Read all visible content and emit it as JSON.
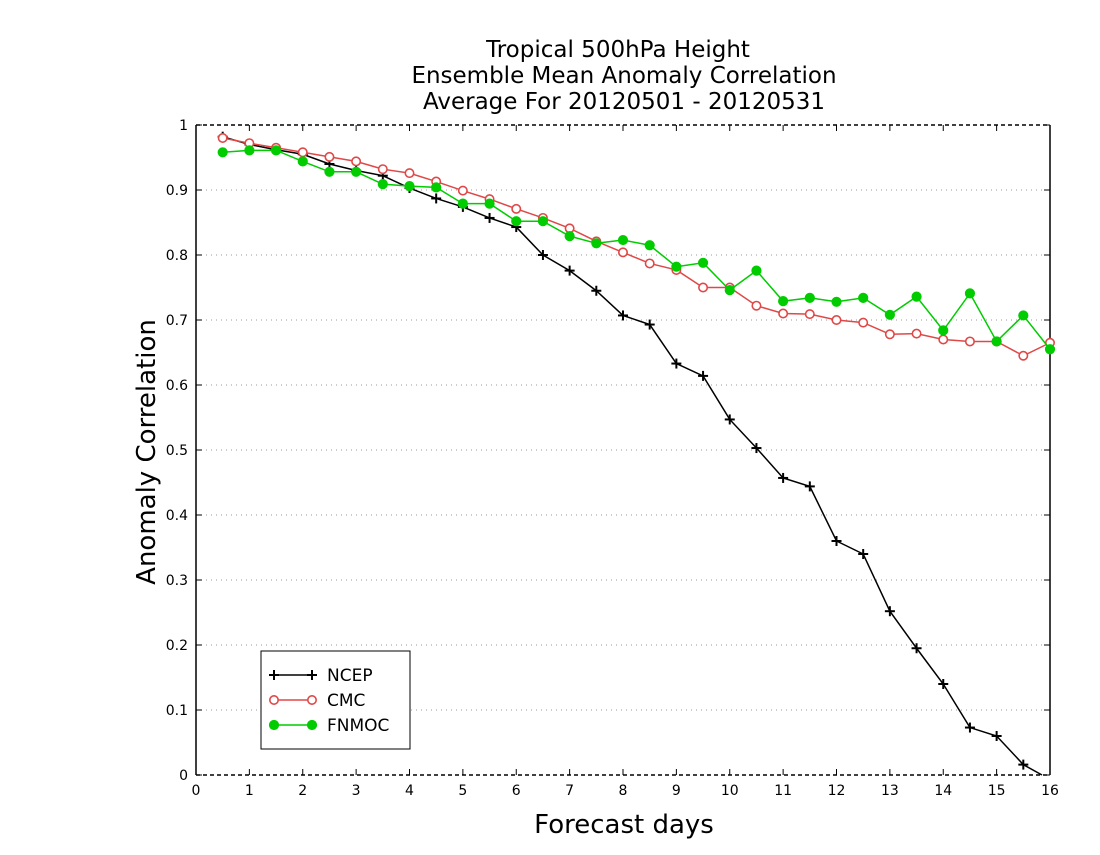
{
  "chart_data": {
    "type": "line",
    "title": [
      "Tropical 500hPa Height",
      "Ensemble Mean Anomaly Correlation",
      "Average For 20120501 - 20120531"
    ],
    "xlabel": "Forecast days",
    "ylabel": "Anomaly Correlation",
    "xlim": [
      0,
      16
    ],
    "ylim": [
      0,
      1
    ],
    "xticks": [
      0,
      1,
      2,
      3,
      4,
      5,
      6,
      7,
      8,
      9,
      10,
      11,
      12,
      13,
      14,
      15,
      16
    ],
    "yticks": [
      0,
      0.1,
      0.2,
      0.3,
      0.4,
      0.5,
      0.6,
      0.7,
      0.8,
      0.9,
      1
    ],
    "ytick_labels": [
      "0",
      "0.1",
      "0.2",
      "0.3",
      "0.4",
      "0.5",
      "0.6",
      "0.7",
      "0.8",
      "0.9",
      "1"
    ],
    "grid": "horizontal dotted",
    "legend_position": "bottom-left",
    "x": [
      0.5,
      1,
      1.5,
      2,
      2.5,
      3,
      3.5,
      4,
      4.5,
      5,
      5.5,
      6,
      6.5,
      7,
      7.5,
      8,
      8.5,
      9,
      9.5,
      10,
      10.5,
      11,
      11.5,
      12,
      12.5,
      13,
      13.5,
      14,
      14.5,
      15,
      15.5,
      16
    ],
    "series": [
      {
        "name": "NCEP",
        "color": "#000000",
        "marker": "plus",
        "x": [
          0.5,
          1,
          1.5,
          2,
          2.5,
          3,
          3.5,
          4,
          4.5,
          5,
          5.5,
          6,
          6.5,
          7,
          7.5,
          8,
          8.5,
          9,
          9.5,
          10,
          10.5,
          11,
          11.5,
          12,
          12.5,
          13,
          13.5,
          14,
          14.5,
          15,
          15.5,
          15.85
        ],
        "values": [
          0.982,
          0.97,
          0.962,
          0.955,
          0.94,
          0.93,
          0.922,
          0.903,
          0.887,
          0.874,
          0.857,
          0.843,
          0.8,
          0.776,
          0.745,
          0.707,
          0.693,
          0.633,
          0.614,
          0.547,
          0.503,
          0.457,
          0.444,
          0.36,
          0.34,
          0.252,
          0.195,
          0.14,
          0.073,
          0.06,
          0.016,
          0.0
        ]
      },
      {
        "name": "CMC",
        "color": "#e04848",
        "marker": "open-circle",
        "values": [
          0.98,
          0.972,
          0.965,
          0.958,
          0.951,
          0.944,
          0.932,
          0.926,
          0.913,
          0.899,
          0.886,
          0.871,
          0.857,
          0.841,
          0.821,
          0.804,
          0.787,
          0.777,
          0.75,
          0.75,
          0.722,
          0.71,
          0.709,
          0.7,
          0.696,
          0.678,
          0.679,
          0.67,
          0.667,
          0.667,
          0.645,
          0.665
        ]
      },
      {
        "name": "FNMOC",
        "color": "#00cc00",
        "marker": "filled-circle",
        "values": [
          0.958,
          0.961,
          0.961,
          0.944,
          0.928,
          0.928,
          0.909,
          0.906,
          0.904,
          0.879,
          0.879,
          0.852,
          0.852,
          0.829,
          0.818,
          0.823,
          0.815,
          0.782,
          0.788,
          0.746,
          0.776,
          0.729,
          0.734,
          0.728,
          0.734,
          0.708,
          0.736,
          0.684,
          0.741,
          0.667,
          0.707,
          0.655
        ]
      }
    ]
  }
}
